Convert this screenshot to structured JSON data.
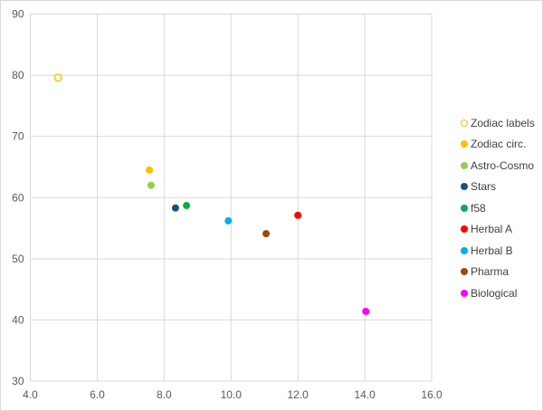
{
  "chart_data": {
    "type": "scatter",
    "title": "",
    "xlabel": "",
    "ylabel": "",
    "xlim": [
      4.0,
      16.0
    ],
    "ylim": [
      30,
      90
    ],
    "x_ticks": [
      "4.0",
      "6.0",
      "8.0",
      "10.0",
      "12.0",
      "14.0",
      "16.0"
    ],
    "y_ticks": [
      "30",
      "40",
      "50",
      "60",
      "70",
      "80",
      "90"
    ],
    "grid": true,
    "legend_position": "right",
    "series": [
      {
        "name": "Zodiac labels",
        "x": 4.83,
        "y": 79.6,
        "color": "#FFC000",
        "hollow": true
      },
      {
        "name": "Zodiac circ.",
        "x": 7.56,
        "y": 64.5,
        "color": "#FFC000",
        "hollow": false
      },
      {
        "name": "Astro-Cosmo",
        "x": 7.61,
        "y": 62.0,
        "color": "#92D050",
        "hollow": false
      },
      {
        "name": "Stars",
        "x": 8.34,
        "y": 58.3,
        "color": "#1F4E79",
        "hollow": false
      },
      {
        "name": "f58",
        "x": 8.67,
        "y": 58.7,
        "color": "#00B050",
        "hollow": false
      },
      {
        "name": "Herbal A",
        "x": 12.0,
        "y": 57.1,
        "color": "#FF0000",
        "hollow": false
      },
      {
        "name": "Herbal B",
        "x": 9.92,
        "y": 56.2,
        "color": "#00B0F0",
        "hollow": false
      },
      {
        "name": "Pharma",
        "x": 11.05,
        "y": 54.1,
        "color": "#9E480E",
        "hollow": false
      },
      {
        "name": "Biological",
        "x": 14.03,
        "y": 41.4,
        "color": "#FF00FF",
        "hollow": false
      }
    ]
  }
}
